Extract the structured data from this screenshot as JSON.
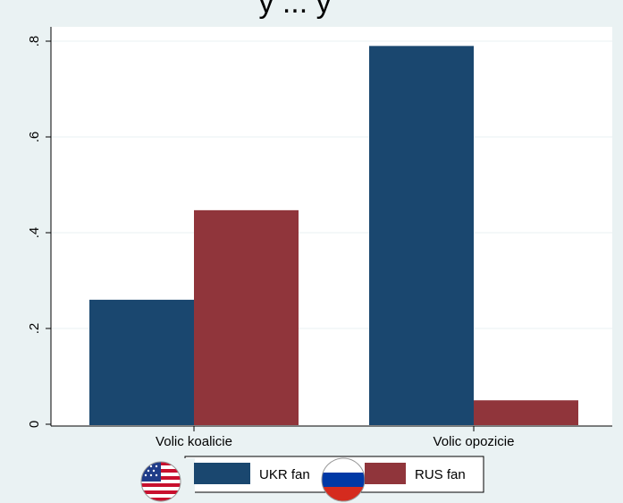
{
  "title_partial": "y ... y",
  "chart_data": {
    "type": "bar",
    "categories": [
      "Volic koalicie",
      "Volic opozicie"
    ],
    "series": [
      {
        "name": "UKR fan",
        "color": "#1a476f",
        "values": [
          0.26,
          0.79
        ]
      },
      {
        "name": "RUS fan",
        "color": "#90353b",
        "values": [
          0.447,
          0.05
        ]
      }
    ],
    "ylim": [
      0,
      0.8
    ],
    "yticks": [
      0,
      0.2,
      0.4,
      0.6,
      0.8
    ],
    "ytick_labels": [
      "0",
      ".2",
      ".4",
      ".6",
      ".8"
    ],
    "grid": true,
    "legend_position": "bottom",
    "legend_icons": [
      "us-flag-icon",
      "russia-flag-icon"
    ],
    "background_color": "#eaf2f3",
    "plot_background": "#ffffff"
  }
}
